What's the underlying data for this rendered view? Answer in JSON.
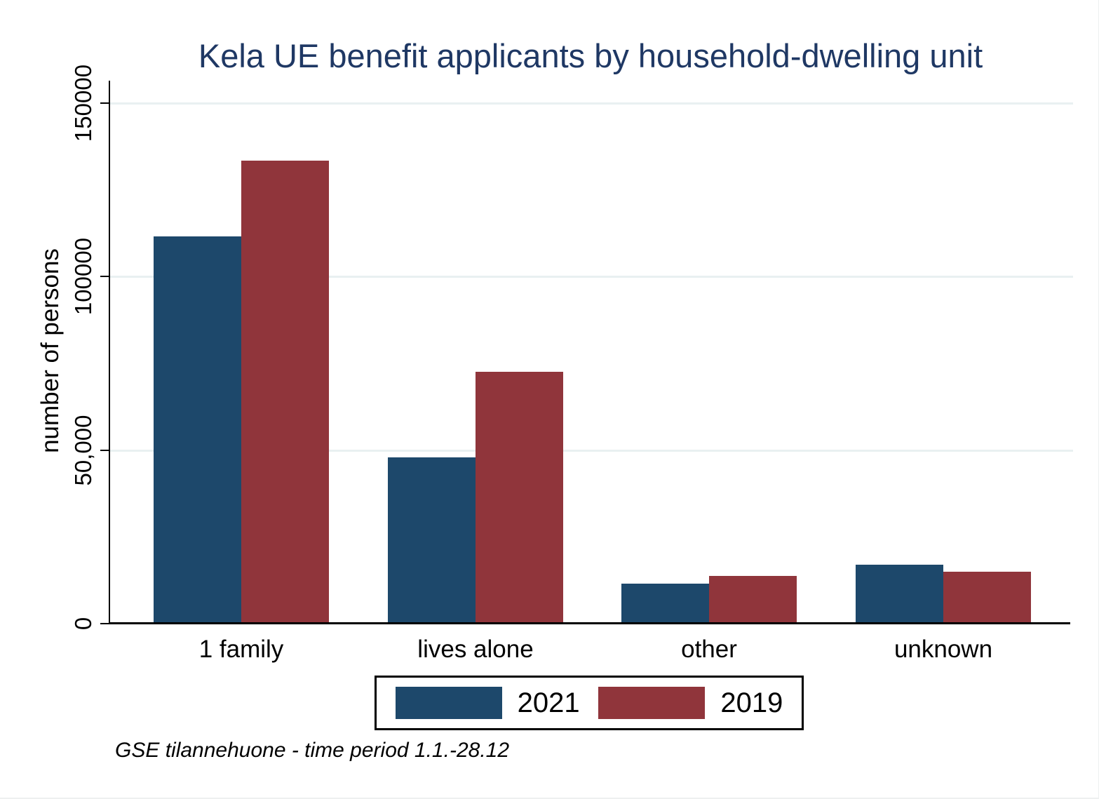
{
  "title": "Kela UE benefit applicants by household-dwelling unit",
  "y_axis": {
    "label": "number of persons"
  },
  "footnote": "GSE tilannehuone - time period 1.1.-28.12",
  "legend": {
    "items": [
      {
        "label": "2021",
        "color": "#1d486b"
      },
      {
        "label": "2019",
        "color": "#90353b"
      }
    ]
  },
  "chart_data": {
    "type": "bar",
    "title": "Kela UE benefit applicants by household-dwelling unit",
    "categories": [
      "1 family",
      "lives alone",
      "other",
      "unknown"
    ],
    "series": [
      {
        "name": "2021",
        "color": "#1d486b",
        "values": [
          111500,
          48000,
          11500,
          17000
        ]
      },
      {
        "name": "2019",
        "color": "#90353b",
        "values": [
          133500,
          72500,
          13800,
          15000
        ]
      }
    ],
    "xlabel": "",
    "ylabel": "number of persons",
    "ylim": [
      0,
      150000
    ],
    "yticks": [
      {
        "value": 0,
        "label": "0"
      },
      {
        "value": 50000,
        "label": "50,000"
      },
      {
        "value": 100000,
        "label": "100000"
      },
      {
        "value": 150000,
        "label": "150000"
      }
    ],
    "grid": "horizontal-light",
    "gridline_color": "#e9f0f1",
    "legend_position": "bottom",
    "note": "GSE tilannehuone - time period 1.1.-28.12"
  }
}
